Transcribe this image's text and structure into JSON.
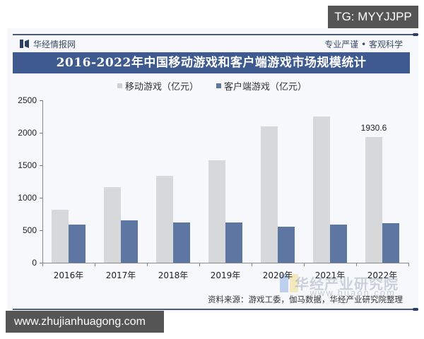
{
  "overlay": {
    "tag": "TG: MYYJJPP",
    "site": "www.zhujianhuagong.com"
  },
  "header": {
    "brand": "华经情报网",
    "motto": "专业严谨 • 客观科学",
    "title": "2016-2022年中国移动游戏和客户端游戏市场规模统计"
  },
  "legend": [
    {
      "label": "移动游戏（亿元）",
      "color": "#d7d8da"
    },
    {
      "label": "客户端游戏（亿元）",
      "color": "#5d77a2"
    }
  ],
  "footer": {
    "source": "资料来源：游戏工委，伽马数据，华经产业研究院整理",
    "watermark": "华经产业研究院",
    "watermark_url": "www.huaon.com"
  },
  "chart_data": {
    "type": "bar",
    "title": "2016-2022年中国移动游戏和客户端游戏市场规模统计",
    "xlabel": "",
    "ylabel": "",
    "ylim": [
      0,
      2500
    ],
    "yticks": [
      0,
      500,
      1000,
      1500,
      2000,
      2500
    ],
    "grid": false,
    "legend_position": "top",
    "categories": [
      "2016年",
      "2017年",
      "2018年",
      "2019年",
      "2020年",
      "2021年",
      "2022年"
    ],
    "series": [
      {
        "name": "移动游戏（亿元）",
        "color": "#d7d8da",
        "values": [
          819,
          1161,
          1340,
          1581,
          2097,
          2255,
          1930.6
        ]
      },
      {
        "name": "客户端游戏（亿元）",
        "color": "#5d77a2",
        "values": [
          583,
          649,
          620,
          615,
          559,
          588,
          614
        ]
      }
    ],
    "annotations": [
      {
        "category": "2022年",
        "series": "移动游戏（亿元）",
        "text": "1930.6"
      }
    ]
  }
}
